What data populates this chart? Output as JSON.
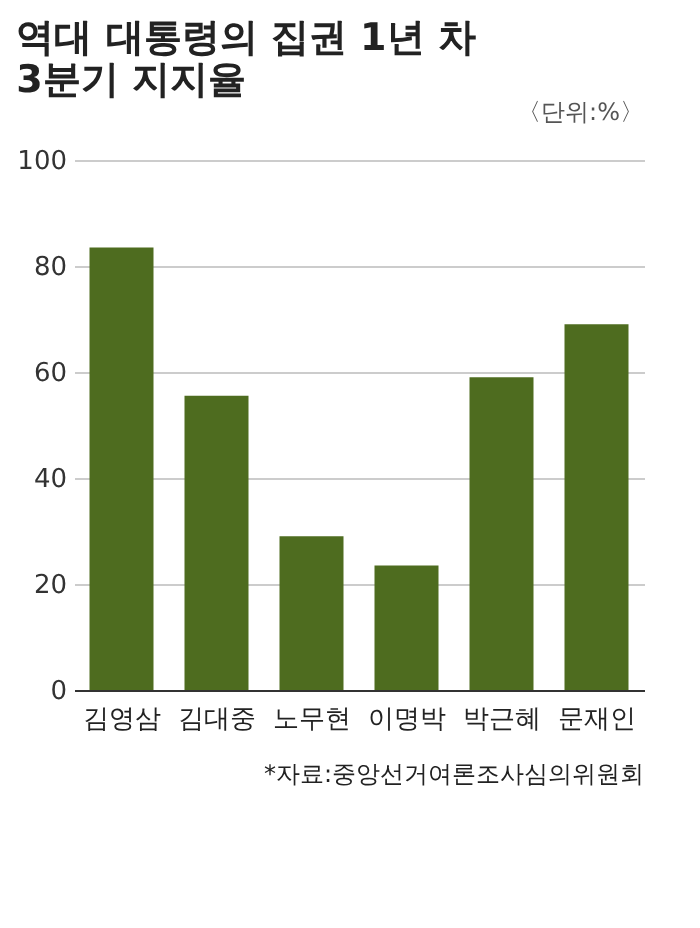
{
  "chart_data": {
    "type": "bar",
    "title": "역대 대통령의 집권 1년 차\n3분기 지지율",
    "subtitle": "〈단위:%〉",
    "categories": [
      "김영삼",
      "김대중",
      "노무현",
      "이명박",
      "박근혜",
      "문재인"
    ],
    "values": [
      83.5,
      55.5,
      29,
      23.5,
      59,
      69
    ],
    "color": "#4e6c1f",
    "ylim": [
      0,
      100
    ],
    "yticks": [
      0,
      20,
      40,
      60,
      80,
      100
    ],
    "grid": "y",
    "annotations": [
      "*자료:중앙선거여론조사심의위원회"
    ]
  }
}
